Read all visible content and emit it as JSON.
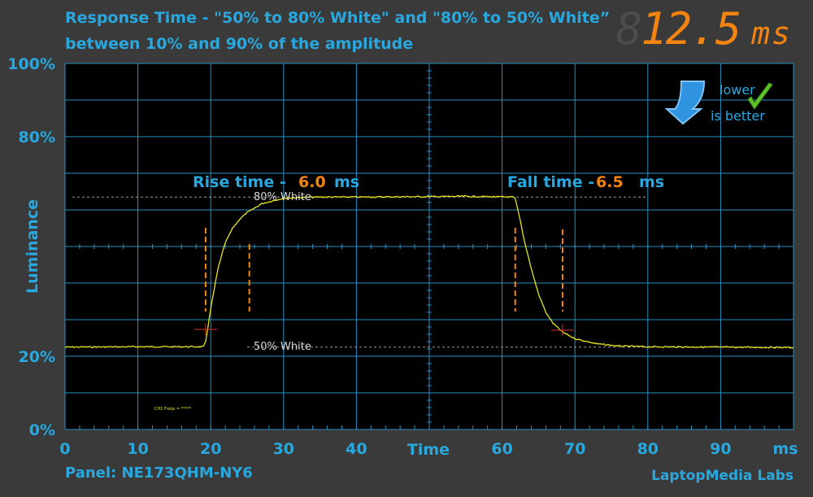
{
  "header": {
    "title_line1": "Response Time - \"50% to 80% White\" and \"80% to 50% White”",
    "title_line2": "between 10% and 90% of the amplitude",
    "total_value": "12.5",
    "total_ghost": "8",
    "total_unit": "ms"
  },
  "badge": {
    "line1": "lower",
    "line2": "is better"
  },
  "footer": {
    "panel": "Panel: NE173QHM-NY6",
    "labs": "LaptopMedia Labs"
  },
  "annotations": {
    "rise_label": "Rise time -",
    "rise_value": "6.0",
    "rise_unit": "ms",
    "fall_label": "Fall time -",
    "fall_value": "6.5",
    "fall_unit": "ms",
    "level_high": "80% White",
    "level_low": "50% White",
    "scope_text": "CH1 Freqs = *****"
  },
  "colors": {
    "background": "#3a3a3a",
    "plot": "#000000",
    "grid": "#2a8fc0",
    "text": "#29a8e0",
    "trace": "#e6e61e",
    "accent": "#f2840f",
    "marker": "#d83020"
  },
  "chart_data": {
    "type": "line",
    "xlabel": "Time",
    "ylabel": "Luminance",
    "x_unit": "ms",
    "xlim": [
      0,
      100
    ],
    "ylim": [
      0,
      100
    ],
    "x_ticks": [
      0,
      10,
      20,
      30,
      40,
      50,
      60,
      70,
      80,
      90
    ],
    "x_tick_labels": [
      "0",
      "10",
      "20",
      "30",
      "40",
      "",
      "60",
      "70",
      "80",
      "90"
    ],
    "y_tick_labels": [
      {
        "value": 0,
        "label": "0%"
      },
      {
        "value": 20,
        "label": "20%"
      },
      {
        "value": 80,
        "label": "80%"
      },
      {
        "value": 100,
        "label": "100%"
      }
    ],
    "grid": true,
    "levels": {
      "low": 22.5,
      "high": 63.5
    },
    "rise": {
      "start_ms": 19.3,
      "end_ms": 25.3,
      "duration_ms": 6.0
    },
    "fall": {
      "start_ms": 61.8,
      "end_ms": 68.3,
      "duration_ms": 6.5
    },
    "series": [
      {
        "x": [
          0,
          10,
          19,
          19.3,
          20,
          21,
          22,
          23,
          24,
          25,
          25.3,
          27,
          30,
          35,
          40,
          50,
          55,
          61.5,
          61.8,
          62.5,
          63,
          64,
          65,
          66,
          67,
          68.3,
          70,
          73,
          76,
          80,
          90,
          100
        ],
        "y": [
          22.5,
          22.6,
          22.6,
          24,
          33,
          44,
          51,
          55,
          57.5,
          59.3,
          59.6,
          61.7,
          63.2,
          63.5,
          63.5,
          63.6,
          63.7,
          63.5,
          63,
          57,
          52,
          44,
          37,
          32,
          29,
          26.6,
          24.8,
          23.4,
          22.8,
          22.6,
          22.5,
          22.4
        ]
      }
    ]
  }
}
